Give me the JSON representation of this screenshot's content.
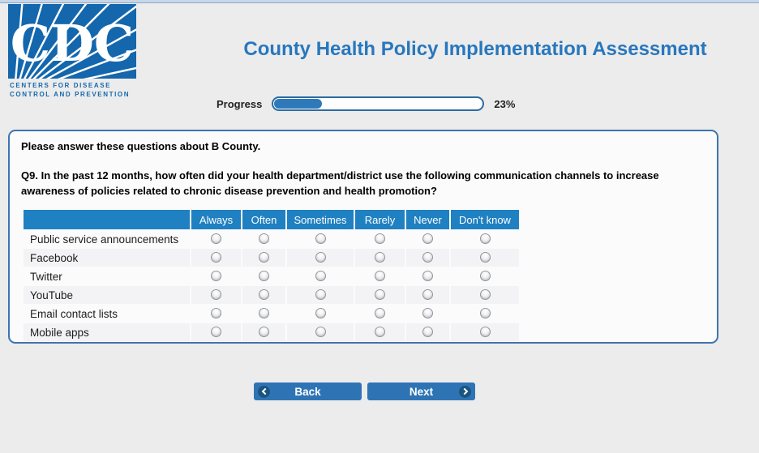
{
  "app": {
    "title": "County Health Policy Implementation Assessment"
  },
  "logo": {
    "acronym": "CDC",
    "line1": "CENTERS FOR DISEASE",
    "line2": "CONTROL AND PREVENTION"
  },
  "progress": {
    "label": "Progress",
    "percent": 23,
    "percent_label": "23%"
  },
  "survey": {
    "intro": "Please answer these questions about B County.",
    "question_number": "Q9.",
    "question_text": " In the past 12 months, how often did your health department/district use the following communication channels to increase awareness of policies related to chronic disease prevention and health promotion?"
  },
  "matrix": {
    "columns": [
      "Always",
      "Often",
      "Sometimes",
      "Rarely",
      "Never",
      "Don't know"
    ],
    "rows": [
      "Public service announcements",
      "Facebook",
      "Twitter",
      "YouTube",
      "Email contact lists",
      "Mobile apps"
    ],
    "selected_answers": []
  },
  "buttons": {
    "back": "Back",
    "next": "Next"
  },
  "icons": {
    "back": "chevron-left-circle-icon",
    "next": "chevron-right-circle-icon"
  },
  "colors": {
    "logo_blue": "#1467ac",
    "title_blue": "#2877bd",
    "header_blue": "#1f80c2",
    "button_blue": "#2e74b5",
    "progress_fill": "#2e79b9",
    "panel_border": "#3d74ae",
    "page_background": "#ececec"
  }
}
